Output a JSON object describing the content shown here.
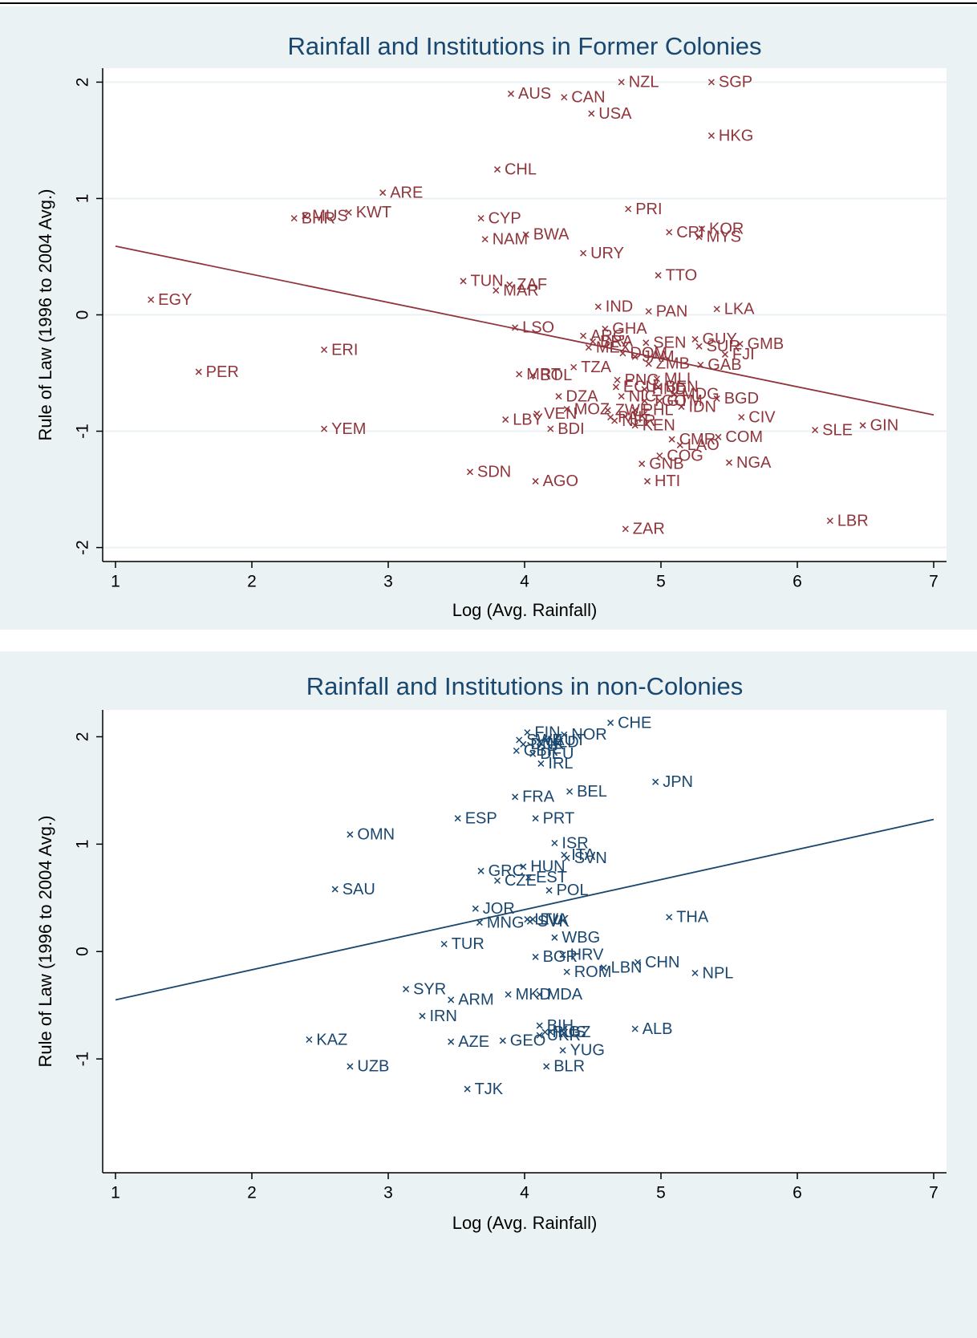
{
  "chart_data": [
    {
      "type": "scatter",
      "title": "Rainfall and Institutions in Former Colonies",
      "x_label": "Log (Avg. Rainfall)",
      "y_label": "Rule of Law (1996 to 2004 Avg.)",
      "color": "#90353b",
      "grid": true,
      "xlim": [
        0.906,
        7.094
      ],
      "ylim": [
        -2.12,
        2.12
      ],
      "xticks": [
        1,
        2,
        3,
        4,
        5,
        6,
        7
      ],
      "yticks": [
        -2,
        -1,
        0,
        1,
        2
      ],
      "labels": [
        "AUS",
        "CAN",
        "NZL",
        "SGP",
        "USA",
        "HKG",
        "CHL",
        "ARE",
        "MUS",
        "BHR",
        "KWT",
        "CYP",
        "PRI",
        "BWA",
        "NAM",
        "KOR",
        "CRI",
        "MYS",
        "URY",
        "TTO",
        "TUN",
        "ZAF",
        "MAR",
        "EGY",
        "IND",
        "PAN",
        "LKA",
        "LSO",
        "GHA",
        "ERI",
        "PER",
        "ARG",
        "BRA",
        "SEN",
        "GUY",
        "GMB",
        "MEX",
        "SUR",
        "DOM",
        "FJI",
        "JAM",
        "ZMB",
        "TZA",
        "GAB",
        "MRT",
        "BOL",
        "PNG",
        "ECU",
        "MLI",
        "DZA",
        "BGD",
        "CIV",
        "SLE",
        "GIN",
        "LBY",
        "VEN",
        "MOZ",
        "BDI",
        "YEM",
        "CMR",
        "COM",
        "LAO",
        "COG",
        "GNB",
        "NGA",
        "SDN",
        "AGO",
        "HTI",
        "ZAR",
        "LBR",
        "KEN",
        "PAK",
        "ZWE",
        "PHL",
        "IDN",
        "NER",
        "HND",
        "BEN",
        "TGO",
        "NIC",
        "GTM",
        "MDG"
      ],
      "x": [
        3.9,
        4.29,
        4.71,
        5.37,
        4.49,
        5.37,
        3.8,
        2.96,
        2.39,
        2.31,
        2.71,
        3.68,
        4.76,
        4.01,
        3.71,
        5.3,
        5.06,
        5.28,
        4.43,
        4.98,
        3.55,
        3.89,
        3.79,
        1.26,
        4.54,
        4.91,
        5.41,
        3.93,
        4.59,
        2.53,
        1.61,
        4.43,
        4.5,
        4.89,
        5.25,
        5.58,
        4.47,
        5.28,
        4.72,
        5.47,
        4.81,
        4.91,
        4.36,
        5.29,
        3.96,
        4.06,
        4.68,
        4.67,
        4.97,
        4.25,
        5.41,
        5.59,
        6.13,
        6.48,
        3.86,
        4.09,
        4.31,
        4.19,
        2.53,
        5.08,
        5.42,
        5.14,
        4.99,
        4.86,
        5.5,
        3.6,
        4.08,
        4.9,
        4.74,
        6.24,
        4.81,
        4.63,
        4.61,
        4.81,
        5.15,
        4.66,
        4.88,
        4.98,
        4.88,
        4.71,
        4.99,
        5.1
      ],
      "y": [
        1.9,
        1.87,
        2.0,
        2.0,
        1.73,
        1.54,
        1.25,
        1.05,
        0.85,
        0.83,
        0.88,
        0.83,
        0.91,
        0.69,
        0.65,
        0.74,
        0.71,
        0.67,
        0.53,
        0.34,
        0.29,
        0.26,
        0.21,
        0.13,
        0.07,
        0.03,
        0.05,
        -0.11,
        -0.12,
        -0.3,
        -0.49,
        -0.18,
        -0.23,
        -0.24,
        -0.21,
        -0.25,
        -0.28,
        -0.27,
        -0.33,
        -0.34,
        -0.36,
        -0.42,
        -0.45,
        -0.43,
        -0.51,
        -0.52,
        -0.56,
        -0.62,
        -0.55,
        -0.7,
        -0.72,
        -0.88,
        -0.99,
        -0.95,
        -0.9,
        -0.85,
        -0.81,
        -0.98,
        -0.98,
        -1.07,
        -1.05,
        -1.12,
        -1.21,
        -1.28,
        -1.27,
        -1.35,
        -1.43,
        -1.43,
        -1.84,
        -1.77,
        -0.95,
        -0.88,
        -0.82,
        -0.82,
        -0.79,
        -0.91,
        -0.64,
        -0.62,
        -0.74,
        -0.7,
        -0.74,
        -0.68
      ],
      "fit_line": {
        "x": [
          1,
          7
        ],
        "y": [
          0.59,
          -0.86
        ]
      }
    },
    {
      "type": "scatter",
      "title": "Rainfall and Institutions in non-Colonies",
      "x_label": "Log (Avg. Rainfall)",
      "y_label": "Rule of Law (1996 to 2004 Avg.)",
      "color": "#1a476f",
      "grid": false,
      "xlim": [
        0.906,
        7.094
      ],
      "ylim": [
        -2.06,
        2.25
      ],
      "xticks": [
        1,
        2,
        3,
        4,
        5,
        6,
        7
      ],
      "yticks": [
        -1,
        0,
        1,
        2
      ],
      "labels": [
        "CHE",
        "FIN",
        "NOR",
        "SWE",
        "AUT",
        "DNK",
        "NLD",
        "GBR",
        "DEU",
        "IRL",
        "JPN",
        "FRA",
        "BEL",
        "ESP",
        "PRT",
        "OMN",
        "ISR",
        "ITA",
        "SVN",
        "GRC",
        "HUN",
        "CZE",
        "EST",
        "POL",
        "SAU",
        "JOR",
        "MNG",
        "LTU",
        "LVA",
        "SVK",
        "THA",
        "WBG",
        "TUR",
        "BGR",
        "HRV",
        "LBN",
        "ROM",
        "CHN",
        "NPL",
        "SYR",
        "ARM",
        "MKD",
        "MDA",
        "IRN",
        "BIH",
        "ALB",
        "KGZ",
        "RUS",
        "GEO",
        "KAZ",
        "AZE",
        "UKR",
        "YUG",
        "UZB",
        "BLR",
        "TJK"
      ],
      "x": [
        4.63,
        4.02,
        4.29,
        3.96,
        4.16,
        3.99,
        4.11,
        3.94,
        4.06,
        4.12,
        4.96,
        3.93,
        4.33,
        3.51,
        4.08,
        2.72,
        4.22,
        4.29,
        4.31,
        3.68,
        3.99,
        3.8,
        4.03,
        4.18,
        2.61,
        3.64,
        3.67,
        4.02,
        4.06,
        4.04,
        5.06,
        4.22,
        3.41,
        4.08,
        4.28,
        4.58,
        4.31,
        4.83,
        5.25,
        3.13,
        3.46,
        3.88,
        4.11,
        3.25,
        4.11,
        4.81,
        4.19,
        4.15,
        3.84,
        2.42,
        3.46,
        4.11,
        4.28,
        2.72,
        4.16,
        3.58
      ],
      "y": [
        2.13,
        2.04,
        2.02,
        1.97,
        1.97,
        1.93,
        1.95,
        1.87,
        1.84,
        1.75,
        1.58,
        1.44,
        1.49,
        1.24,
        1.24,
        1.09,
        1.01,
        0.9,
        0.87,
        0.75,
        0.79,
        0.66,
        0.69,
        0.57,
        0.58,
        0.4,
        0.27,
        0.3,
        0.3,
        0.28,
        0.32,
        0.13,
        0.07,
        -0.05,
        -0.03,
        -0.15,
        -0.19,
        -0.1,
        -0.2,
        -0.35,
        -0.45,
        -0.4,
        -0.4,
        -0.6,
        -0.69,
        -0.72,
        -0.75,
        -0.75,
        -0.83,
        -0.82,
        -0.84,
        -0.78,
        -0.92,
        -1.07,
        -1.07,
        -1.28
      ],
      "fit_line": {
        "x": [
          1,
          7
        ],
        "y": [
          -0.45,
          1.23
        ]
      }
    }
  ]
}
